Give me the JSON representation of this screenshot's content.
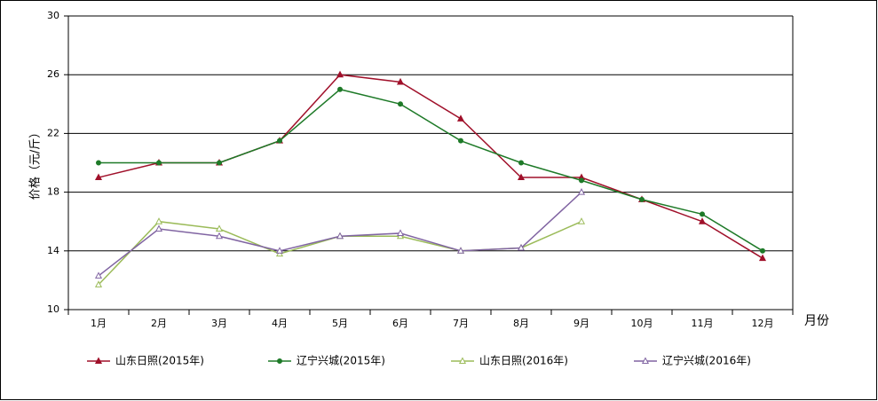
{
  "chart_data": {
    "type": "line",
    "y_label": "价格（元/斤）",
    "x_label": "月份",
    "categories": [
      "1月",
      "2月",
      "3月",
      "4月",
      "5月",
      "6月",
      "7月",
      "8月",
      "9月",
      "10月",
      "11月",
      "12月"
    ],
    "ylim": [
      10,
      30
    ],
    "yticks": [
      10,
      14,
      18,
      22,
      26,
      30
    ],
    "grid": true,
    "series": [
      {
        "name": "山东日照(2015年)",
        "color": "#a0102a",
        "marker": "triangle",
        "filled": true,
        "values": [
          19,
          20,
          20,
          21.5,
          26,
          25.5,
          23,
          19,
          19,
          17.5,
          16,
          13.5
        ]
      },
      {
        "name": "辽宁兴城(2015年)",
        "color": "#1e7a28",
        "marker": "circle",
        "filled": true,
        "values": [
          20,
          20,
          20,
          21.5,
          25,
          24,
          21.5,
          20,
          18.8,
          17.5,
          16.5,
          14
        ]
      },
      {
        "name": "山东日照(2016年)",
        "color": "#9bbb59",
        "marker": "triangle",
        "filled": false,
        "values": [
          11.7,
          16,
          15.5,
          13.8,
          15,
          15,
          14,
          14.2,
          16,
          null,
          null,
          null
        ]
      },
      {
        "name": "辽宁兴城(2016年)",
        "color": "#8064a2",
        "marker": "triangle",
        "filled": false,
        "values": [
          12.3,
          15.5,
          15,
          14,
          15,
          15.2,
          14,
          14.2,
          18,
          null,
          null,
          null
        ]
      }
    ]
  }
}
